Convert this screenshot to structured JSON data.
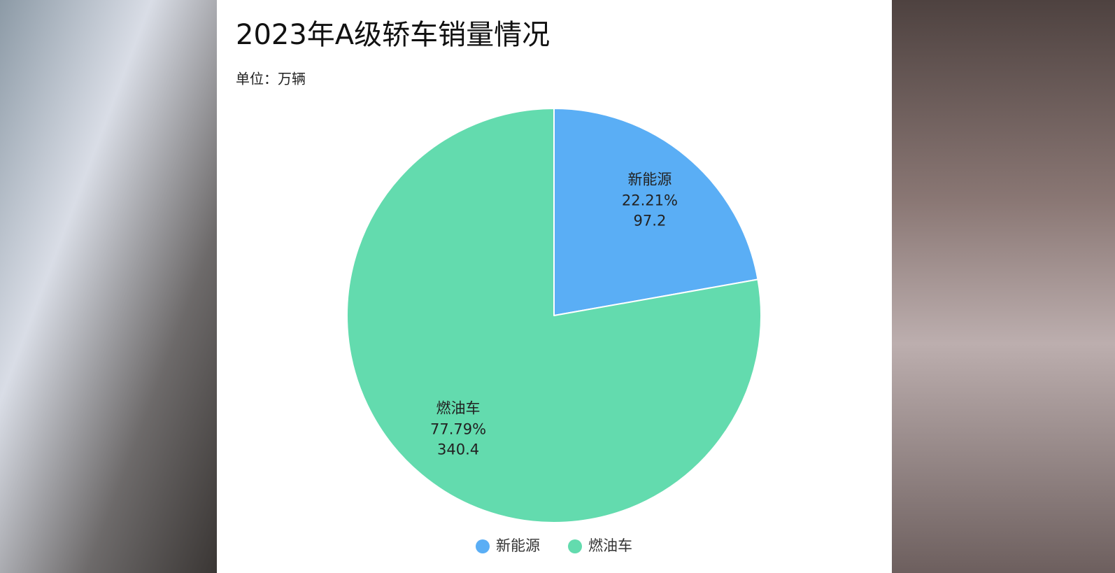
{
  "chart_data": {
    "type": "pie",
    "title": "2023年A级轿车销量情况",
    "subtitle": "单位：万辆",
    "categories": [
      "新能源",
      "燃油车"
    ],
    "values": [
      97.2,
      340.4
    ],
    "percent_labels": [
      "22.21%",
      "77.79%"
    ],
    "colors": [
      "#5aaef5",
      "#63dbae"
    ],
    "legend": "bottom"
  }
}
